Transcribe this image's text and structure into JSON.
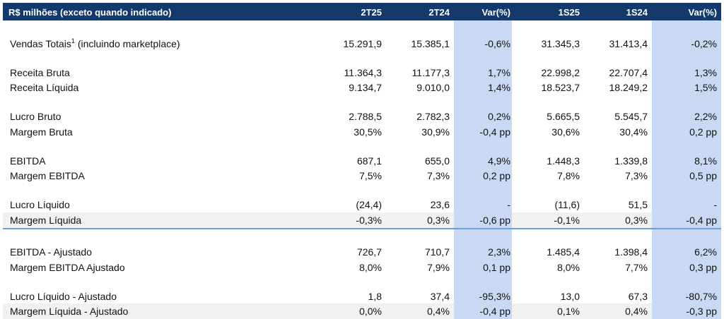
{
  "table": {
    "header": {
      "title": "R$ milhões (exceto quando indicado)",
      "columns": [
        "2T25",
        "2T24",
        "Var(%)",
        "1S25",
        "1S24",
        "Var(%)"
      ]
    },
    "rows": [
      {
        "label": "Vendas Totais",
        "label_sup": "1",
        "label_suffix": " (incluindo marketplace)",
        "values": [
          "15.291,9",
          "15.385,1",
          "-0,6%",
          "31.345,3",
          "31.413,4",
          "-0,2%"
        ]
      },
      {
        "label": "Receita Bruta",
        "values": [
          "11.364,3",
          "11.177,3",
          "1,7%",
          "22.998,2",
          "22.707,4",
          "1,3%"
        ]
      },
      {
        "label": "Receita Líquida",
        "values": [
          "9.134,7",
          "9.010,0",
          "1,4%",
          "18.523,7",
          "18.249,2",
          "1,5%"
        ]
      },
      {
        "label": "Lucro Bruto",
        "values": [
          "2.788,5",
          "2.782,3",
          "0,2%",
          "5.665,5",
          "5.545,7",
          "2,2%"
        ]
      },
      {
        "label": "Margem Bruta",
        "values": [
          "30,5%",
          "30,9%",
          "-0,4 pp",
          "30,6%",
          "30,4%",
          "0,2 pp"
        ]
      },
      {
        "label": "EBITDA",
        "values": [
          "687,1",
          "655,0",
          "4,9%",
          "1.448,3",
          "1.339,8",
          "8,1%"
        ]
      },
      {
        "label": "Margem EBITDA",
        "values": [
          "7,5%",
          "7,3%",
          "0,2 pp",
          "7,8%",
          "7,3%",
          "0,5 pp"
        ]
      },
      {
        "label": "Lucro Líquido",
        "values": [
          "(24,4)",
          "23,6",
          "-",
          "(11,6)",
          "51,5",
          "-"
        ]
      },
      {
        "label": "Margem Líquida",
        "values": [
          "-0,3%",
          "0,3%",
          "-0,6 pp",
          "-0,1%",
          "0,3%",
          "-0,4 pp"
        ]
      },
      {
        "label": "EBITDA - Ajustado",
        "values": [
          "726,7",
          "710,7",
          "2,3%",
          "1.485,4",
          "1.398,4",
          "6,2%"
        ]
      },
      {
        "label": "Margem EBITDA Ajustado",
        "values": [
          "8,0%",
          "7,9%",
          "0,1 pp",
          "8,0%",
          "7,7%",
          "0,3 pp"
        ]
      },
      {
        "label": "Lucro Líquido - Ajustado",
        "values": [
          "1,8",
          "37,4",
          "-95,3%",
          "13,0",
          "67,3",
          "-80,7%"
        ]
      },
      {
        "label": "Margem Líquida - Ajustado",
        "values": [
          "0,0%",
          "0,4%",
          "-0,4 pp",
          "0,1%",
          "0,4%",
          "-0,3 pp"
        ]
      }
    ]
  }
}
